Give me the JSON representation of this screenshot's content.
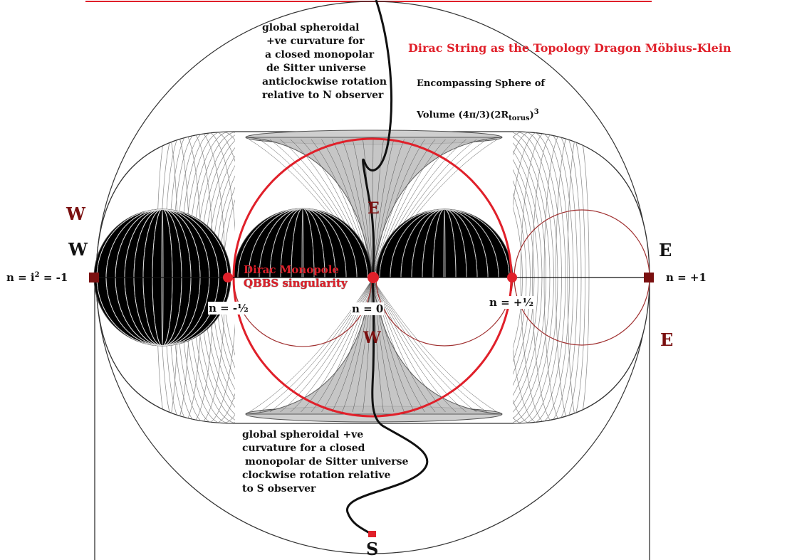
{
  "title": "Dirac String as the Topology Dragon Möbius-Klein",
  "encompassing_sphere": {
    "line1": "Encompassing Sphere of",
    "volume_prefix": "Volume (4π/3)(2R",
    "subscript": "torus",
    "suffix": ")",
    "exponent": "3"
  },
  "north_note": [
    "global spheroidal",
    "+ve curvature for",
    "a closed monopolar",
    "de Sitter universe",
    "anticlockwise rotation",
    "relative to N observer"
  ],
  "south_note": [
    "global spheroidal +ve",
    "curvature for a closed",
    "monopolar de Sitter universe",
    "clockwise rotation relative",
    "to S observer"
  ],
  "monopole": {
    "line1": "Dirac Monopole",
    "line2": "QBBS singularity"
  },
  "points": {
    "n_minus_one": {
      "prefix": "n = i",
      "sup": "2",
      "suffix": " = -1"
    },
    "n_minus_half": "n = -½",
    "n_zero": "n = 0",
    "n_plus_half": "n = +½",
    "n_plus_one": "n = +1"
  },
  "compass": {
    "w_upper": "W",
    "w_left": "W",
    "e_center_upper": "E",
    "w_center_lower": "W",
    "e_right": "E",
    "e_right_lower": "E",
    "s_bottom": "S"
  },
  "colors": {
    "accent_red": "#e0202a",
    "dark_red": "#7a1010",
    "marker": "#7a1010"
  }
}
